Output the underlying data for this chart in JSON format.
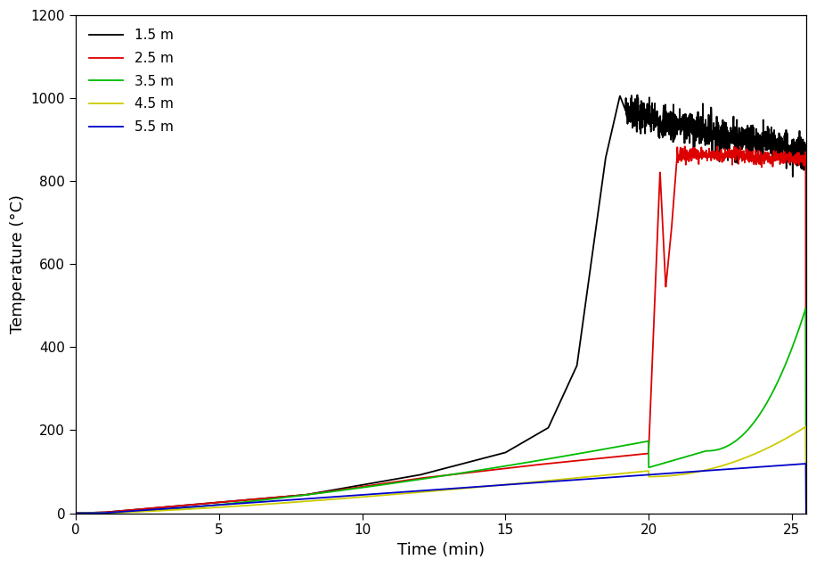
{
  "title": "",
  "xlabel": "Time (min)",
  "ylabel": "Temperature (°C)",
  "xlim": [
    0,
    25.5
  ],
  "ylim": [
    0,
    1200
  ],
  "yticks": [
    0,
    200,
    400,
    600,
    800,
    1000,
    1200
  ],
  "xticks": [
    0,
    5,
    10,
    15,
    20,
    25
  ],
  "legend_labels": [
    "1.5 m",
    "2.5 m",
    "3.5 m",
    "4.5 m",
    "5.5 m"
  ],
  "colors": [
    "#000000",
    "#dd0000",
    "#00bb00",
    "#cccc00",
    "#0000cc"
  ],
  "linewidth": 1.3,
  "background_color": "#ffffff",
  "figsize": [
    9.16,
    6.37
  ],
  "dpi": 100
}
